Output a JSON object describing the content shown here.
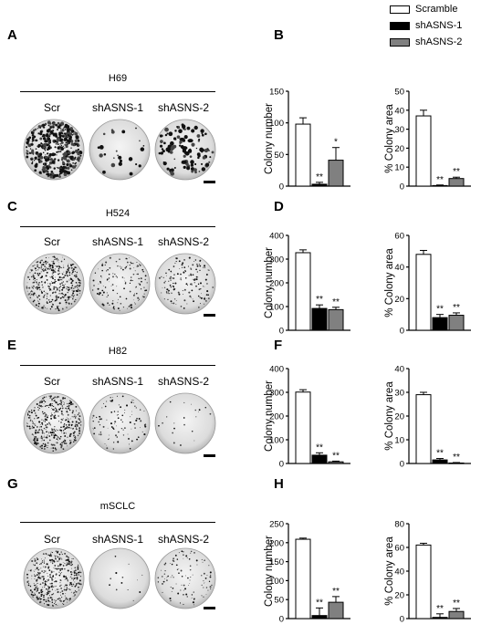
{
  "legend": [
    {
      "label": "Scramble",
      "color": "#ffffff"
    },
    {
      "label": "shASNS-1",
      "color": "#000000"
    },
    {
      "label": "shASNS-2",
      "color": "#808080"
    }
  ],
  "rows": [
    {
      "image_letter": "A",
      "chart_letter": "B",
      "cell_line": "H69",
      "conditions": [
        "Scr",
        "shASNS-1",
        "shASNS-2"
      ],
      "dish_density": [
        1.0,
        0.06,
        0.25
      ]
    },
    {
      "image_letter": "C",
      "chart_letter": "D",
      "cell_line": "H524",
      "conditions": [
        "Scr",
        "shASNS-1",
        "shASNS-2"
      ],
      "dish_density": [
        1.0,
        0.35,
        0.35
      ]
    },
    {
      "image_letter": "E",
      "chart_letter": "F",
      "cell_line": "H82",
      "conditions": [
        "Scr",
        "shASNS-1",
        "shASNS-2"
      ],
      "dish_density": [
        1.0,
        0.25,
        0.05
      ]
    },
    {
      "image_letter": "G",
      "chart_letter": "H",
      "cell_line": "mSCLC",
      "conditions": [
        "Scr",
        "shASNS-1",
        "shASNS-2"
      ],
      "dish_density": [
        1.0,
        0.03,
        0.25
      ]
    }
  ],
  "chart_data": [
    {
      "type": "bar",
      "panel": "B",
      "ylabel": "Colony number",
      "ylim": [
        0,
        150
      ],
      "yticks": [
        0,
        50,
        100,
        150
      ],
      "categories": [
        "Scramble",
        "shASNS-1",
        "shASNS-2"
      ],
      "values": [
        98,
        3,
        41
      ],
      "errors": [
        10,
        3,
        20
      ],
      "annotations": [
        "",
        "**",
        "*"
      ]
    },
    {
      "type": "bar",
      "panel": "B",
      "ylabel": "% Colony area",
      "ylim": [
        0,
        50
      ],
      "yticks": [
        0,
        10,
        20,
        30,
        40,
        50
      ],
      "categories": [
        "Scramble",
        "shASNS-1",
        "shASNS-2"
      ],
      "values": [
        37,
        0.3,
        4
      ],
      "errors": [
        3,
        0.3,
        0.7
      ],
      "annotations": [
        "",
        "**",
        "**"
      ]
    },
    {
      "type": "bar",
      "panel": "D",
      "ylabel": "Colony number",
      "ylim": [
        0,
        400
      ],
      "yticks": [
        0,
        100,
        200,
        300,
        400
      ],
      "categories": [
        "Scramble",
        "shASNS-1",
        "shASNS-2"
      ],
      "values": [
        327,
        92,
        87
      ],
      "errors": [
        12,
        15,
        10
      ],
      "annotations": [
        "",
        "**",
        "**"
      ]
    },
    {
      "type": "bar",
      "panel": "D",
      "ylabel": "% Colony area",
      "ylim": [
        0,
        60
      ],
      "yticks": [
        0,
        20,
        40,
        60
      ],
      "categories": [
        "Scramble",
        "shASNS-1",
        "shASNS-2"
      ],
      "values": [
        48,
        8,
        9.5
      ],
      "errors": [
        2.5,
        2,
        1.5
      ],
      "annotations": [
        "",
        "**",
        "**"
      ]
    },
    {
      "type": "bar",
      "panel": "F",
      "ylabel": "Colony number",
      "ylim": [
        0,
        400
      ],
      "yticks": [
        0,
        100,
        200,
        300,
        400
      ],
      "categories": [
        "Scramble",
        "shASNS-1",
        "shASNS-2"
      ],
      "values": [
        301,
        35,
        7
      ],
      "errors": [
        10,
        10,
        3
      ],
      "annotations": [
        "",
        "**",
        "**"
      ]
    },
    {
      "type": "bar",
      "panel": "F",
      "ylabel": "% Colony area",
      "ylim": [
        0,
        40
      ],
      "yticks": [
        0,
        10,
        20,
        30,
        40
      ],
      "categories": [
        "Scramble",
        "shASNS-1",
        "shASNS-2"
      ],
      "values": [
        29,
        1.5,
        0.2
      ],
      "errors": [
        1,
        0.6,
        0.2
      ],
      "annotations": [
        "",
        "**",
        "**"
      ]
    },
    {
      "type": "bar",
      "panel": "H",
      "ylabel": "Colony number",
      "ylim": [
        0,
        250
      ],
      "yticks": [
        0,
        50,
        100,
        150,
        200,
        250
      ],
      "categories": [
        "Scramble",
        "shASNS-1",
        "shASNS-2"
      ],
      "values": [
        209,
        8,
        43
      ],
      "errors": [
        3,
        20,
        15
      ],
      "annotations": [
        "",
        "**",
        "**"
      ]
    },
    {
      "type": "bar",
      "panel": "H",
      "ylabel": "% Colony area",
      "ylim": [
        0,
        80
      ],
      "yticks": [
        0,
        20,
        40,
        60,
        80
      ],
      "categories": [
        "Scramble",
        "shASNS-1",
        "shASNS-2"
      ],
      "values": [
        62,
        1,
        6
      ],
      "errors": [
        1.5,
        3,
        2.5
      ],
      "annotations": [
        "",
        "**",
        "**"
      ]
    }
  ]
}
